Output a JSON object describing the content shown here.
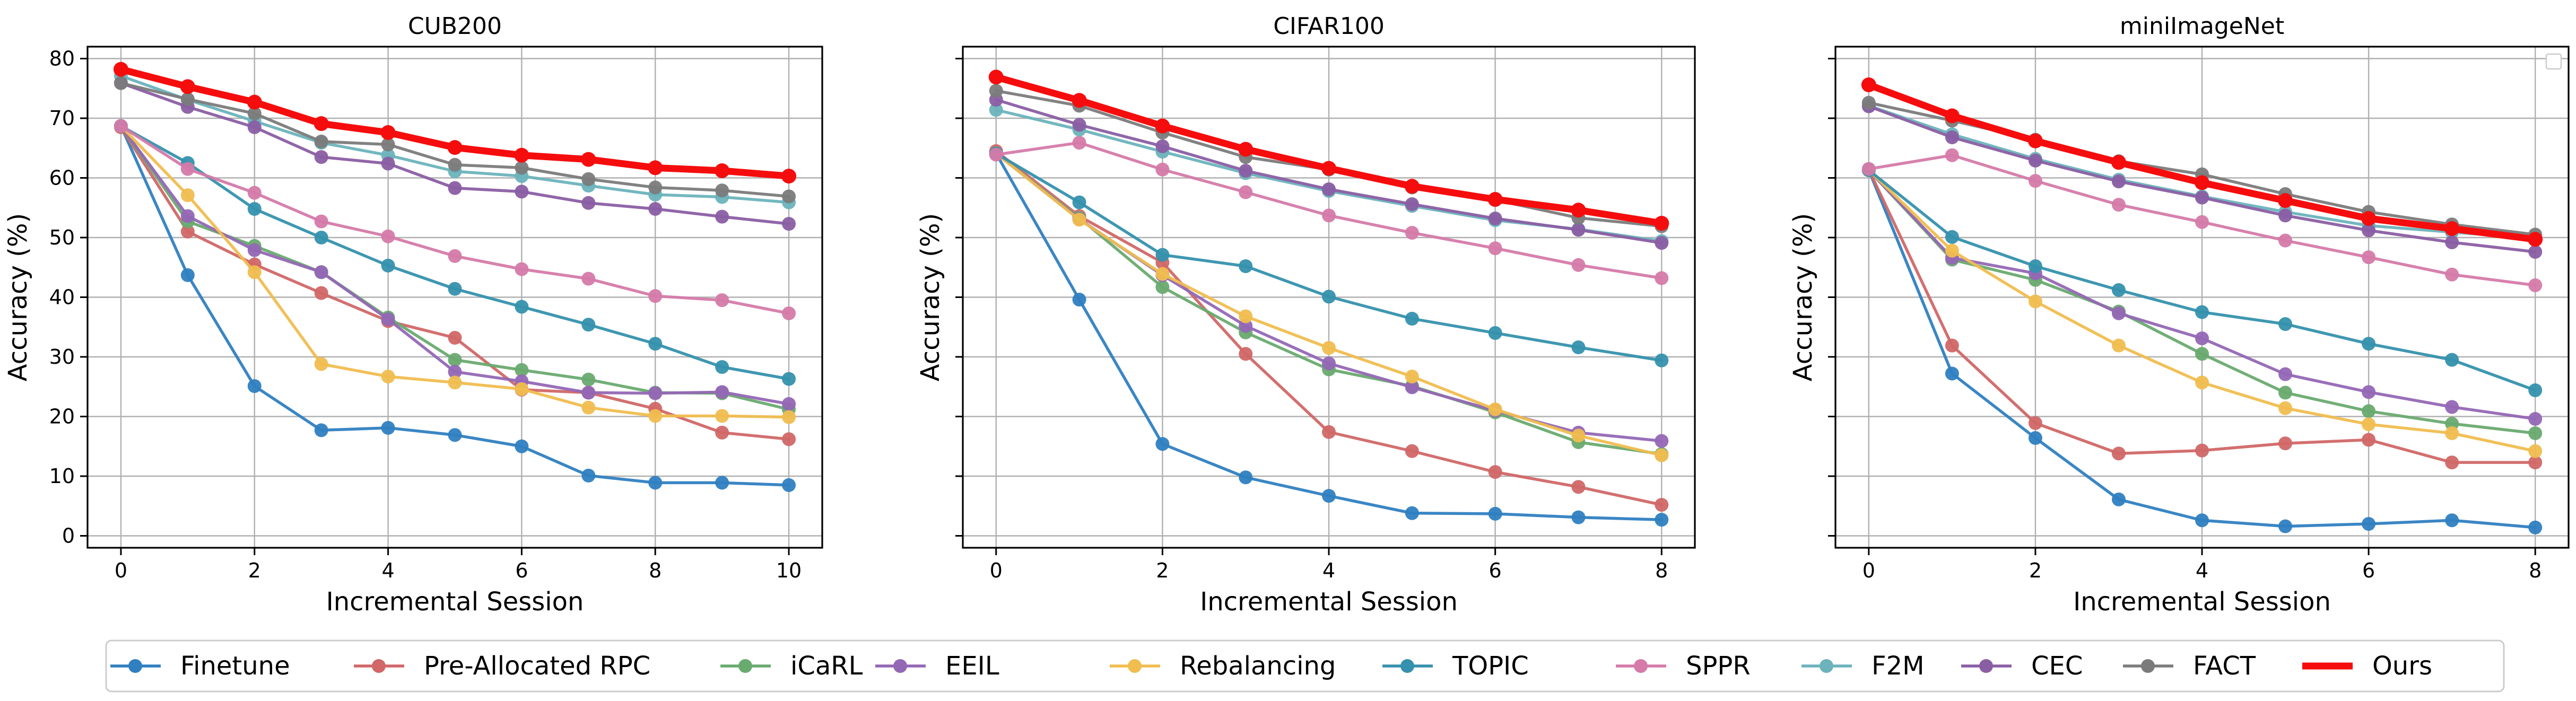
{
  "figure": {
    "legend": {
      "entries": [
        "Finetune",
        "Pre-Allocated RPC",
        "iCaRL",
        "EEIL",
        "Rebalancing",
        "TOPIC",
        "SPPR",
        "F2M",
        "CEC",
        "FACT",
        "Ours"
      ],
      "placement": "bottom-center"
    },
    "series_styles": [
      {
        "name": "Finetune",
        "color": "#2f7fc1",
        "emphasis": false
      },
      {
        "name": "Pre-Allocated RPC",
        "color": "#d16767",
        "emphasis": false
      },
      {
        "name": "iCaRL",
        "color": "#69aa6f",
        "emphasis": false
      },
      {
        "name": "EEIL",
        "color": "#9467b5",
        "emphasis": false
      },
      {
        "name": "Rebalancing",
        "color": "#f0bd4f",
        "emphasis": false
      },
      {
        "name": "TOPIC",
        "color": "#3591ad",
        "emphasis": false
      },
      {
        "name": "SPPR",
        "color": "#d57aa9",
        "emphasis": false
      },
      {
        "name": "F2M",
        "color": "#6cb3bc",
        "emphasis": false
      },
      {
        "name": "CEC",
        "color": "#8a5ea3",
        "emphasis": false
      },
      {
        "name": "FACT",
        "color": "#7b7b7b",
        "emphasis": false
      },
      {
        "name": "Ours",
        "color": "#f50d0d",
        "emphasis": true
      }
    ]
  },
  "chart_data": [
    {
      "type": "line",
      "title": "CUB200",
      "xlabel": "Incremental Session",
      "ylabel": "Accuracy (%)",
      "xlim": [
        -0.5,
        10.5
      ],
      "ylim": [
        -2,
        82
      ],
      "xticks": [
        0,
        2,
        4,
        6,
        8,
        10
      ],
      "yticks": [
        0,
        10,
        20,
        30,
        40,
        50,
        60,
        70,
        80
      ],
      "grid": true,
      "show_ytick_labels": true,
      "x": [
        0,
        1,
        2,
        3,
        4,
        5,
        6,
        7,
        8,
        9,
        10
      ],
      "series": [
        {
          "name": "Finetune",
          "values": [
            68.7,
            43.7,
            25.1,
            17.7,
            18.1,
            16.9,
            15.0,
            10.1,
            8.9,
            8.9,
            8.5
          ]
        },
        {
          "name": "Pre-Allocated RPC",
          "values": [
            68.5,
            51.0,
            45.5,
            40.7,
            36.0,
            33.2,
            24.5,
            24.0,
            21.3,
            17.3,
            16.2
          ]
        },
        {
          "name": "iCaRL",
          "values": [
            68.7,
            52.7,
            48.6,
            44.2,
            36.6,
            29.5,
            27.8,
            26.2,
            24.0,
            23.9,
            21.2
          ]
        },
        {
          "name": "EEIL",
          "values": [
            68.7,
            53.6,
            47.9,
            44.2,
            36.3,
            27.5,
            25.9,
            24.0,
            23.9,
            24.1,
            22.1
          ]
        },
        {
          "name": "Rebalancing",
          "values": [
            68.7,
            57.1,
            44.2,
            28.8,
            26.7,
            25.7,
            24.6,
            21.5,
            20.1,
            20.1,
            19.9
          ]
        },
        {
          "name": "TOPIC",
          "values": [
            68.7,
            62.5,
            54.8,
            50.0,
            45.3,
            41.4,
            38.4,
            35.4,
            32.2,
            28.3,
            26.3
          ]
        },
        {
          "name": "SPPR",
          "values": [
            68.7,
            61.5,
            57.5,
            52.7,
            50.2,
            46.9,
            44.7,
            43.1,
            40.2,
            39.5,
            37.3
          ]
        },
        {
          "name": "F2M",
          "values": [
            77.1,
            73.1,
            69.5,
            65.9,
            63.8,
            61.1,
            60.3,
            58.7,
            57.2,
            56.8,
            55.9
          ]
        },
        {
          "name": "CEC",
          "values": [
            75.9,
            71.9,
            68.5,
            63.5,
            62.4,
            58.3,
            57.7,
            55.8,
            54.8,
            53.5,
            52.3
          ]
        },
        {
          "name": "FACT",
          "values": [
            75.9,
            73.2,
            70.8,
            66.1,
            65.6,
            62.2,
            61.7,
            59.8,
            58.4,
            57.9,
            56.9
          ]
        },
        {
          "name": "Ours",
          "values": [
            78.2,
            75.3,
            72.7,
            69.1,
            67.6,
            65.1,
            63.8,
            63.1,
            61.7,
            61.2,
            60.3
          ]
        }
      ]
    },
    {
      "type": "line",
      "title": "CIFAR100",
      "xlabel": "Incremental Session",
      "ylabel": "Accuracy (%)",
      "xlim": [
        -0.4,
        8.4
      ],
      "ylim": [
        -2,
        82
      ],
      "xticks": [
        0,
        2,
        4,
        6,
        8
      ],
      "yticks": [
        0,
        10,
        20,
        30,
        40,
        50,
        60,
        70,
        80
      ],
      "grid": true,
      "show_ytick_labels": false,
      "x": [
        0,
        1,
        2,
        3,
        4,
        5,
        6,
        7,
        8
      ],
      "series": [
        {
          "name": "Finetune",
          "values": [
            64.1,
            39.6,
            15.4,
            9.8,
            6.7,
            3.8,
            3.7,
            3.1,
            2.7
          ]
        },
        {
          "name": "Pre-Allocated RPC",
          "values": [
            64.5,
            53.6,
            45.8,
            30.5,
            17.4,
            14.2,
            10.7,
            8.2,
            5.2
          ]
        },
        {
          "name": "iCaRL",
          "values": [
            64.1,
            53.3,
            41.7,
            34.1,
            27.9,
            25.1,
            20.7,
            15.7,
            13.7
          ]
        },
        {
          "name": "EEIL",
          "values": [
            64.1,
            53.1,
            43.7,
            35.2,
            28.9,
            24.9,
            21.0,
            17.3,
            15.9
          ]
        },
        {
          "name": "Rebalancing",
          "values": [
            64.1,
            53.0,
            43.9,
            36.8,
            31.5,
            26.7,
            21.2,
            16.8,
            13.5
          ]
        },
        {
          "name": "TOPIC",
          "values": [
            64.1,
            55.9,
            47.1,
            45.2,
            40.1,
            36.4,
            34.0,
            31.6,
            29.4
          ]
        },
        {
          "name": "SPPR",
          "values": [
            63.9,
            65.9,
            61.4,
            57.6,
            53.7,
            50.8,
            48.2,
            45.4,
            43.2
          ]
        },
        {
          "name": "F2M",
          "values": [
            71.4,
            68.1,
            64.4,
            60.8,
            57.8,
            55.3,
            52.9,
            51.4,
            49.4
          ]
        },
        {
          "name": "CEC",
          "values": [
            73.1,
            68.9,
            65.3,
            61.2,
            58.1,
            55.6,
            53.2,
            51.3,
            49.1
          ]
        },
        {
          "name": "FACT",
          "values": [
            74.6,
            72.1,
            67.6,
            63.5,
            61.4,
            58.4,
            56.3,
            53.3,
            51.9
          ]
        },
        {
          "name": "Ours",
          "values": [
            76.9,
            73.0,
            68.7,
            64.8,
            61.6,
            58.6,
            56.4,
            54.6,
            52.4
          ]
        }
      ]
    },
    {
      "type": "line",
      "title": "miniImageNet",
      "xlabel": "Incremental Session",
      "ylabel": "Accuracy (%)",
      "xlim": [
        -0.4,
        8.4
      ],
      "ylim": [
        -2,
        82
      ],
      "xticks": [
        0,
        2,
        4,
        6,
        8
      ],
      "yticks": [
        0,
        10,
        20,
        30,
        40,
        50,
        60,
        70,
        80
      ],
      "grid": true,
      "show_ytick_labels": false,
      "x": [
        0,
        1,
        2,
        3,
        4,
        5,
        6,
        7,
        8
      ],
      "series": [
        {
          "name": "Finetune",
          "values": [
            61.3,
            27.2,
            16.4,
            6.1,
            2.6,
            1.6,
            2.0,
            2.6,
            1.4
          ]
        },
        {
          "name": "Pre-Allocated RPC",
          "values": [
            61.4,
            31.9,
            18.9,
            13.8,
            14.3,
            15.5,
            16.1,
            12.3,
            12.3
          ]
        },
        {
          "name": "iCaRL",
          "values": [
            61.3,
            46.3,
            42.9,
            37.6,
            30.5,
            24.0,
            20.9,
            18.8,
            17.2
          ]
        },
        {
          "name": "EEIL",
          "values": [
            61.3,
            46.6,
            44.0,
            37.3,
            33.1,
            27.1,
            24.1,
            21.6,
            19.6
          ]
        },
        {
          "name": "Rebalancing",
          "values": [
            61.3,
            47.8,
            39.3,
            31.9,
            25.7,
            21.4,
            18.7,
            17.2,
            14.2
          ]
        },
        {
          "name": "TOPIC",
          "values": [
            61.3,
            50.1,
            45.2,
            41.2,
            37.5,
            35.5,
            32.2,
            29.5,
            24.4
          ]
        },
        {
          "name": "SPPR",
          "values": [
            61.5,
            63.8,
            59.5,
            55.5,
            52.6,
            49.5,
            46.7,
            43.8,
            42.0
          ]
        },
        {
          "name": "F2M",
          "values": [
            72.1,
            67.3,
            63.2,
            59.7,
            56.9,
            54.3,
            52.0,
            50.9,
            49.9
          ]
        },
        {
          "name": "CEC",
          "values": [
            72.0,
            66.8,
            62.9,
            59.4,
            56.7,
            53.7,
            51.2,
            49.2,
            47.6
          ]
        },
        {
          "name": "FACT",
          "values": [
            72.6,
            69.6,
            66.4,
            62.8,
            60.6,
            57.3,
            54.3,
            52.2,
            50.5
          ]
        },
        {
          "name": "Ours",
          "values": [
            75.6,
            70.4,
            66.2,
            62.6,
            59.2,
            56.2,
            53.2,
            51.5,
            49.7
          ]
        }
      ]
    }
  ]
}
